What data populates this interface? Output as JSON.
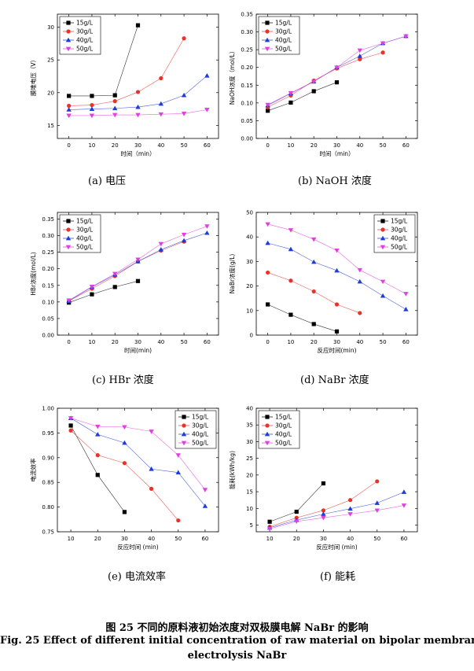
{
  "colors": {
    "s15": "#000000",
    "s30": "#e8332b",
    "s40": "#1f3bd9",
    "s50": "#e040e0"
  },
  "chart_data": [
    {
      "id": "a",
      "type": "line",
      "title": "(a)  电压",
      "xlabel": "时间（min）",
      "ylabel": "膜堆电压（V）",
      "xlim": [
        -5,
        65
      ],
      "ylim": [
        13,
        32
      ],
      "xticks": [
        0,
        10,
        20,
        30,
        40,
        50,
        60
      ],
      "xtick_labels": [
        "0",
        "10",
        "20",
        "30",
        "40",
        "50",
        "60"
      ],
      "yticks": [
        15,
        20,
        25,
        30
      ],
      "ytick_labels": [
        "15",
        "20",
        "25",
        "30"
      ],
      "legend_pos": "top-left",
      "series": [
        {
          "name": "15g/L",
          "marker": "square",
          "x": [
            0,
            10,
            20,
            30
          ],
          "values": [
            19.5,
            19.5,
            19.6,
            30.3
          ]
        },
        {
          "name": "30g/L",
          "marker": "circle",
          "x": [
            0,
            10,
            20,
            30,
            40,
            50
          ],
          "values": [
            18.0,
            18.1,
            18.7,
            20.1,
            22.2,
            28.3
          ]
        },
        {
          "name": "40g/L",
          "marker": "tri-up",
          "x": [
            0,
            10,
            20,
            30,
            40,
            50,
            60
          ],
          "values": [
            17.4,
            17.5,
            17.6,
            17.8,
            18.3,
            19.6,
            22.6
          ]
        },
        {
          "name": "50g/L",
          "marker": "tri-down",
          "x": [
            0,
            10,
            20,
            30,
            40,
            50,
            60
          ],
          "values": [
            16.5,
            16.5,
            16.6,
            16.6,
            16.7,
            16.8,
            17.4
          ]
        }
      ]
    },
    {
      "id": "b",
      "type": "line",
      "title": "(b) NaOH 浓度",
      "xlabel": "时间（min）",
      "ylabel": "NaOH浓度（mol/L）",
      "xlim": [
        -5,
        65
      ],
      "ylim": [
        0,
        0.35
      ],
      "xticks": [
        0,
        10,
        20,
        30,
        40,
        50,
        60
      ],
      "xtick_labels": [
        "0",
        "10",
        "20",
        "30",
        "40",
        "50",
        "60"
      ],
      "yticks": [
        0,
        0.05,
        0.1,
        0.15,
        0.2,
        0.25,
        0.3,
        0.35
      ],
      "ytick_labels": [
        "0.00",
        "0.05",
        "0.10",
        "0.15",
        "0.20",
        "0.25",
        "0.30",
        "0.35"
      ],
      "legend_pos": "top-left",
      "series": [
        {
          "name": "15g/L",
          "marker": "square",
          "x": [
            0,
            10,
            20,
            30
          ],
          "values": [
            0.078,
            0.101,
            0.133,
            0.158
          ]
        },
        {
          "name": "30g/L",
          "marker": "circle",
          "x": [
            0,
            10,
            20,
            30,
            40,
            50
          ],
          "values": [
            0.088,
            0.121,
            0.163,
            0.197,
            0.223,
            0.242
          ]
        },
        {
          "name": "40g/L",
          "marker": "tri-up",
          "x": [
            0,
            10,
            20,
            30,
            40,
            50,
            60
          ],
          "values": [
            0.093,
            0.127,
            0.16,
            0.2,
            0.232,
            0.268,
            0.288
          ]
        },
        {
          "name": "50g/L",
          "marker": "tri-down",
          "x": [
            0,
            10,
            20,
            30,
            40,
            50,
            60
          ],
          "values": [
            0.095,
            0.128,
            0.16,
            0.2,
            0.248,
            0.268,
            0.288
          ]
        }
      ]
    },
    {
      "id": "c",
      "type": "line",
      "title": "(c) HBr 浓度",
      "xlabel": "时间(min)",
      "ylabel": "HBr浓度(mol/L)",
      "xlim": [
        -5,
        65
      ],
      "ylim": [
        0,
        0.37
      ],
      "xticks": [
        0,
        10,
        20,
        30,
        40,
        50,
        60
      ],
      "xtick_labels": [
        "0",
        "10",
        "20",
        "30",
        "40",
        "50",
        "60"
      ],
      "yticks": [
        0,
        0.05,
        0.1,
        0.15,
        0.2,
        0.25,
        0.3,
        0.35
      ],
      "ytick_labels": [
        "0.00",
        "0.05",
        "0.10",
        "0.15",
        "0.20",
        "0.25",
        "0.30",
        "0.35"
      ],
      "legend_pos": "top-left",
      "series": [
        {
          "name": "15g/L",
          "marker": "square",
          "x": [
            0,
            10,
            20,
            30
          ],
          "values": [
            0.098,
            0.123,
            0.145,
            0.163
          ]
        },
        {
          "name": "30g/L",
          "marker": "circle",
          "x": [
            0,
            10,
            20,
            30,
            40,
            50
          ],
          "values": [
            0.103,
            0.14,
            0.178,
            0.222,
            0.255,
            0.282
          ]
        },
        {
          "name": "40g/L",
          "marker": "tri-up",
          "x": [
            0,
            10,
            20,
            30,
            40,
            50,
            60
          ],
          "values": [
            0.103,
            0.145,
            0.182,
            0.222,
            0.258,
            0.285,
            0.308
          ]
        },
        {
          "name": "50g/L",
          "marker": "tri-down",
          "x": [
            0,
            10,
            20,
            30,
            40,
            50,
            60
          ],
          "values": [
            0.105,
            0.146,
            0.185,
            0.228,
            0.275,
            0.303,
            0.328
          ]
        }
      ]
    },
    {
      "id": "d",
      "type": "line",
      "title": "(d) NaBr 浓度",
      "xlabel": "反应时间(min)",
      "ylabel": "NaBr浓度(g/L)",
      "xlim": [
        -5,
        65
      ],
      "ylim": [
        0,
        50
      ],
      "xticks": [
        0,
        10,
        20,
        30,
        40,
        50,
        60
      ],
      "xtick_labels": [
        "0",
        "10",
        "20",
        "30",
        "40",
        "50",
        "60"
      ],
      "yticks": [
        0,
        10,
        20,
        30,
        40,
        50
      ],
      "ytick_labels": [
        "0",
        "10",
        "20",
        "30",
        "40",
        "50"
      ],
      "legend_pos": "top-right",
      "series": [
        {
          "name": "15g/L",
          "marker": "square",
          "x": [
            0,
            10,
            20,
            30
          ],
          "values": [
            12.5,
            8.3,
            4.5,
            1.5
          ]
        },
        {
          "name": "30g/L",
          "marker": "circle",
          "x": [
            0,
            10,
            20,
            30,
            40
          ],
          "values": [
            25.5,
            22.2,
            17.8,
            12.5,
            9.0
          ]
        },
        {
          "name": "40g/L",
          "marker": "tri-up",
          "x": [
            0,
            10,
            20,
            30,
            40,
            50,
            60
          ],
          "values": [
            37.5,
            35.0,
            29.8,
            26.3,
            21.8,
            16.0,
            10.5
          ]
        },
        {
          "name": "50g/L",
          "marker": "tri-down",
          "x": [
            0,
            10,
            20,
            30,
            40,
            50,
            60
          ],
          "values": [
            45.2,
            42.8,
            39.0,
            34.5,
            26.5,
            21.8,
            16.8
          ]
        }
      ]
    },
    {
      "id": "e",
      "type": "line",
      "title": "(e)  电流效率",
      "xlabel": "反应时间 (min)",
      "ylabel": "电流效率",
      "xlim": [
        5,
        65
      ],
      "ylim": [
        0.75,
        1.0
      ],
      "xticks": [
        10,
        20,
        30,
        40,
        50,
        60
      ],
      "xtick_labels": [
        "10",
        "20",
        "30",
        "40",
        "50",
        "60"
      ],
      "yticks": [
        0.75,
        0.8,
        0.85,
        0.9,
        0.95,
        1.0
      ],
      "ytick_labels": [
        "0.75",
        "0.80",
        "0.85",
        "0.90",
        "0.95",
        "1.00"
      ],
      "legend_pos": "top-right",
      "series": [
        {
          "name": "15g/L",
          "marker": "square",
          "x": [
            10,
            20,
            30
          ],
          "values": [
            0.965,
            0.865,
            0.79
          ]
        },
        {
          "name": "30g/L",
          "marker": "circle",
          "x": [
            10,
            20,
            30,
            40,
            50
          ],
          "values": [
            0.955,
            0.905,
            0.889,
            0.837,
            0.773
          ]
        },
        {
          "name": "40g/L",
          "marker": "tri-up",
          "x": [
            10,
            20,
            30,
            40,
            50,
            60
          ],
          "values": [
            0.98,
            0.947,
            0.93,
            0.877,
            0.87,
            0.802
          ]
        },
        {
          "name": "50g/L",
          "marker": "tri-down",
          "x": [
            10,
            20,
            30,
            40,
            50,
            60
          ],
          "values": [
            0.98,
            0.963,
            0.962,
            0.953,
            0.905,
            0.835
          ]
        }
      ]
    },
    {
      "id": "f",
      "type": "line",
      "title": "(f)  能耗",
      "xlabel": "反应时间 (min)",
      "ylabel": "能耗(kWh/kg)",
      "xlim": [
        5,
        65
      ],
      "ylim": [
        3,
        40
      ],
      "xticks": [
        10,
        20,
        30,
        40,
        50,
        60
      ],
      "xtick_labels": [
        "10",
        "20",
        "30",
        "40",
        "50",
        "60"
      ],
      "yticks": [
        5,
        10,
        15,
        20,
        25,
        30,
        35,
        40
      ],
      "ytick_labels": [
        "5",
        "10",
        "15",
        "20",
        "25",
        "30",
        "35",
        "40"
      ],
      "legend_pos": "top-left",
      "series": [
        {
          "name": "15g/L",
          "marker": "square",
          "x": [
            10,
            20,
            30
          ],
          "values": [
            6.0,
            9.0,
            17.5
          ]
        },
        {
          "name": "30g/L",
          "marker": "circle",
          "x": [
            10,
            20,
            30,
            40,
            50
          ],
          "values": [
            4.5,
            7.2,
            9.4,
            12.5,
            18.1
          ]
        },
        {
          "name": "40g/L",
          "marker": "tri-up",
          "x": [
            10,
            20,
            30,
            40,
            50,
            60
          ],
          "values": [
            4.2,
            6.5,
            8.3,
            9.9,
            11.6,
            14.9
          ]
        },
        {
          "name": "50g/L",
          "marker": "tri-down",
          "x": [
            10,
            20,
            30,
            40,
            50,
            60
          ],
          "values": [
            3.9,
            6.1,
            7.2,
            8.3,
            9.4,
            10.9
          ]
        }
      ]
    }
  ],
  "figure": {
    "caption_cn": "图  25  不同的原料液初始浓度对双极膜电解 NaBr 的影响",
    "caption_en_line1": "Fig. 25    Effect of different initial concentration of raw material on bipolar membrane",
    "caption_en_line2": "electrolysis NaBr"
  }
}
